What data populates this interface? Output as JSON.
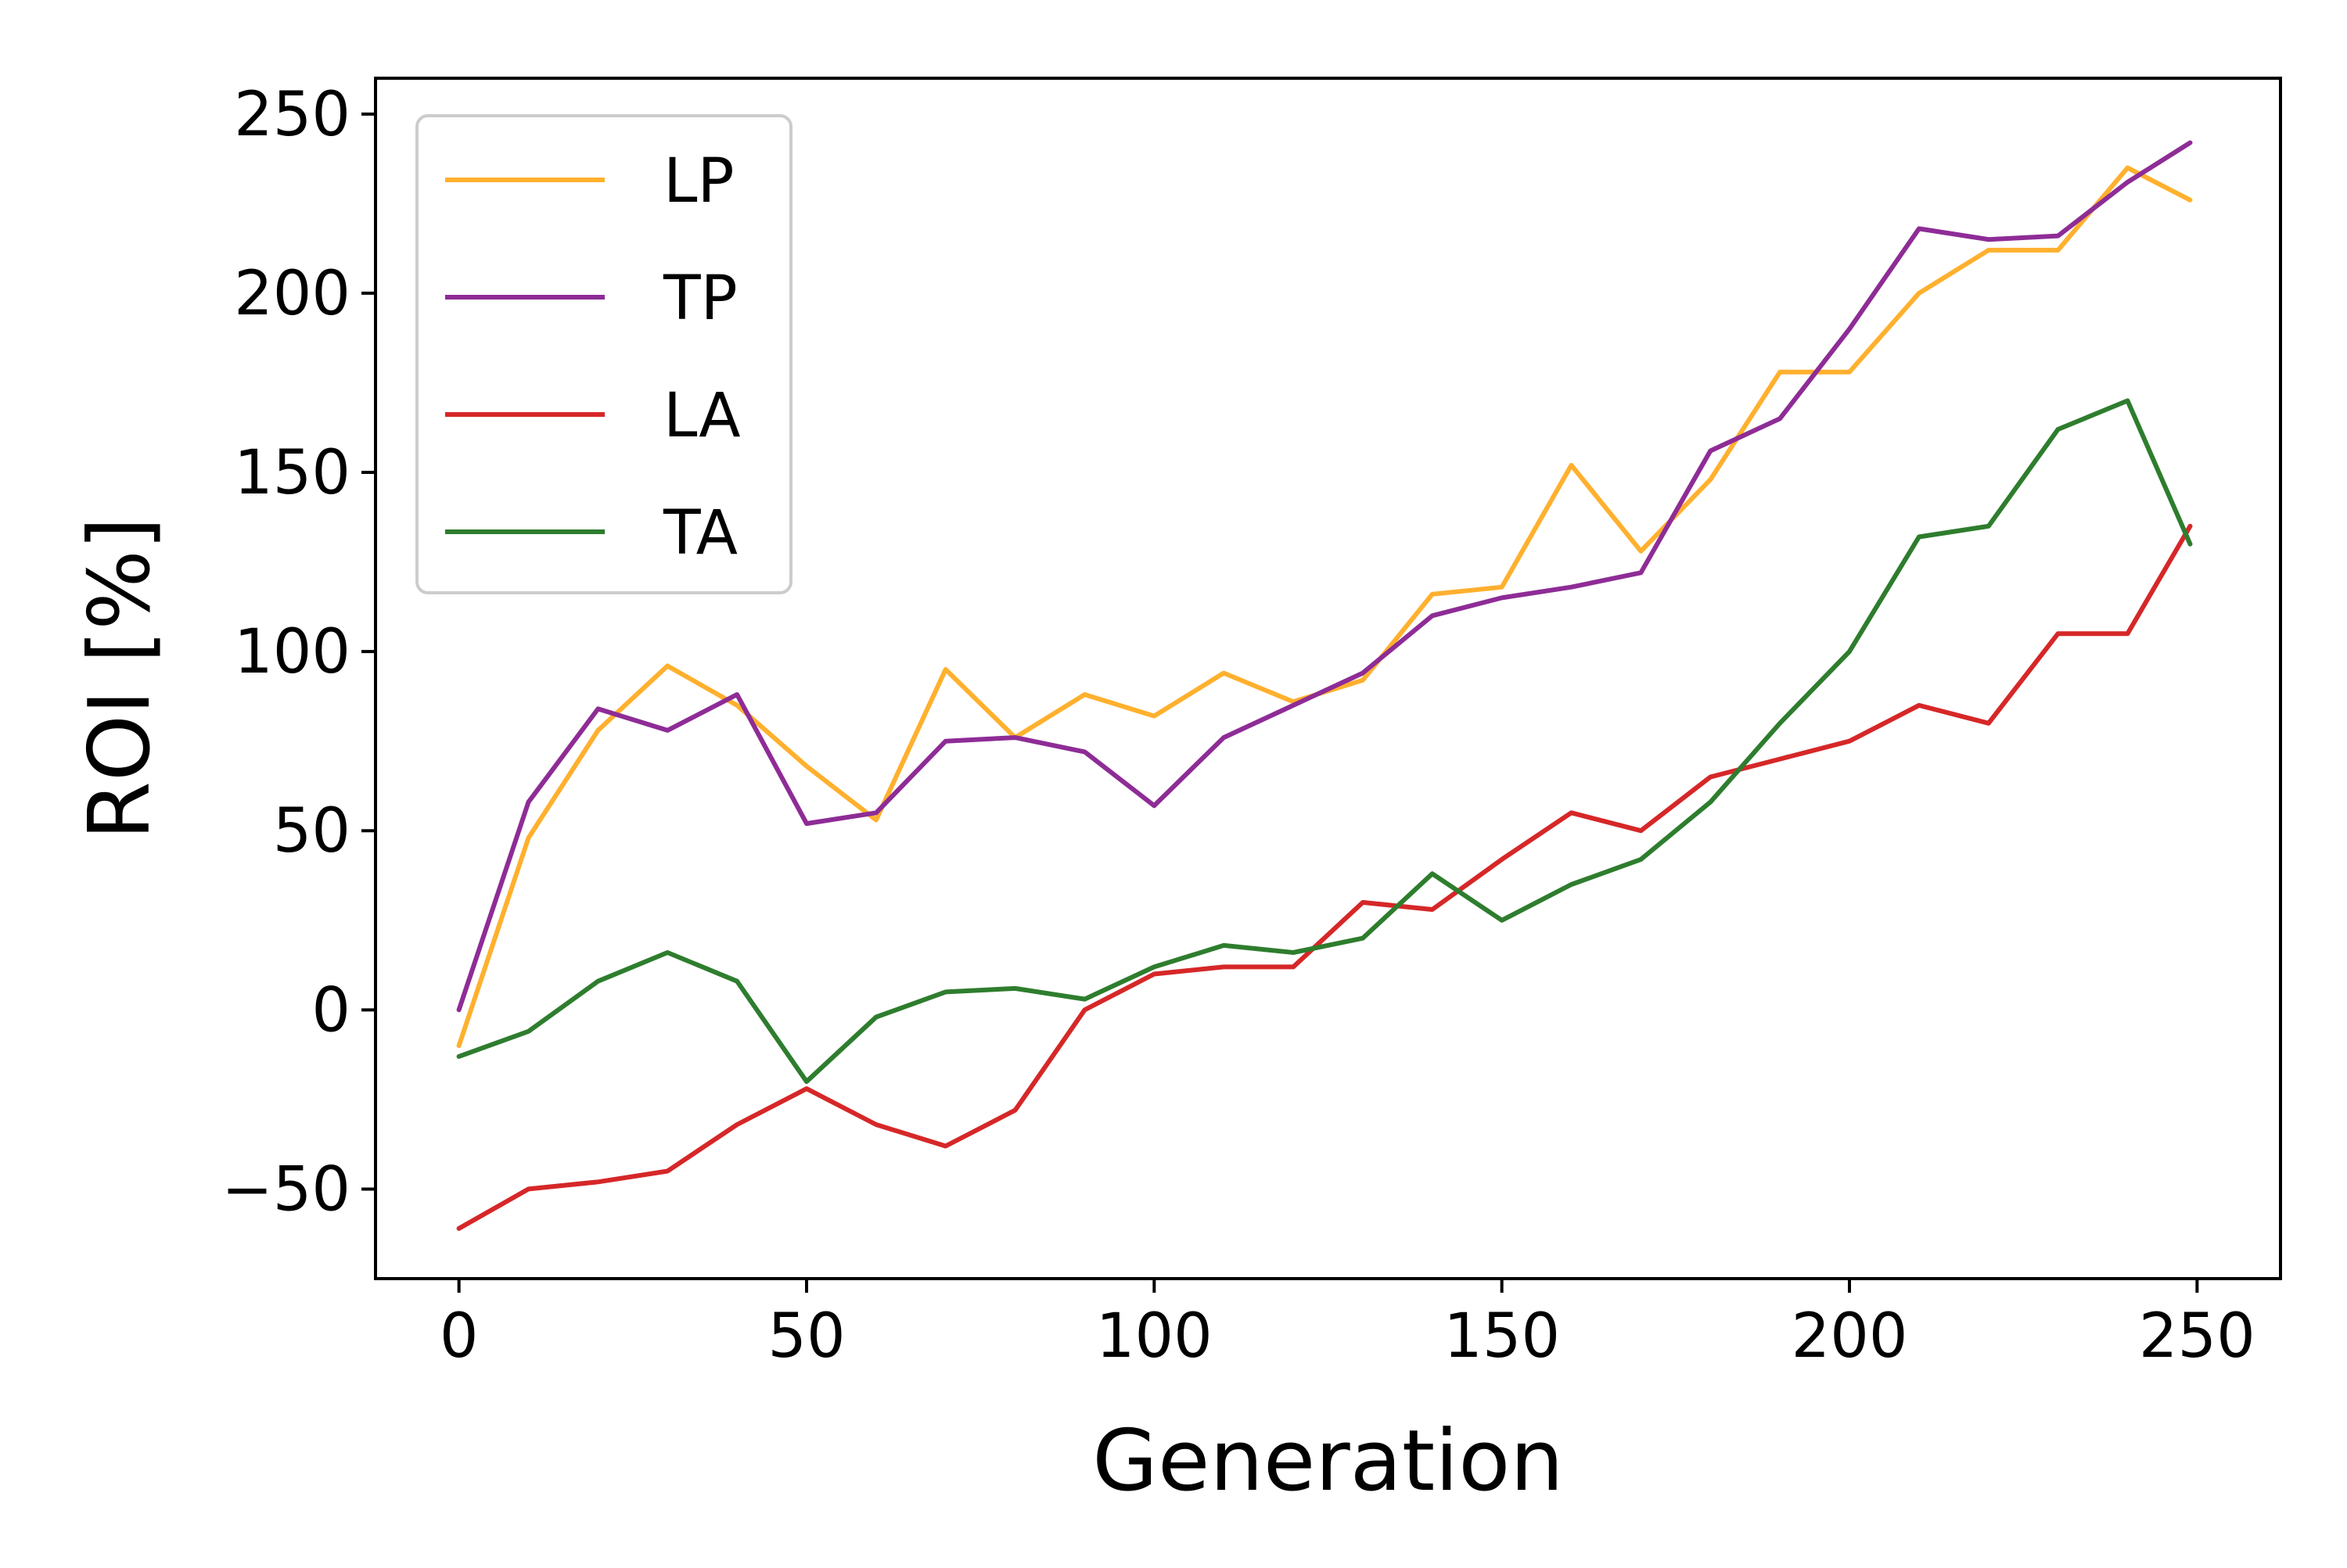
{
  "chart_data": {
    "type": "line",
    "xlabel": "Generation",
    "ylabel": "ROI [%]",
    "xlim": [
      -12,
      262
    ],
    "ylim": [
      -75,
      260
    ],
    "x_ticks": [
      0,
      50,
      100,
      150,
      200,
      250
    ],
    "y_ticks": [
      -50,
      0,
      50,
      100,
      150,
      200,
      250
    ],
    "x_tick_labels": [
      "0",
      "50",
      "100",
      "150",
      "200",
      "250"
    ],
    "y_tick_labels": [
      "−50",
      "0",
      "50",
      "100",
      "150",
      "200",
      "250"
    ],
    "grid": false,
    "legend_position": "upper-left",
    "x": [
      0,
      10,
      20,
      30,
      40,
      50,
      60,
      70,
      80,
      90,
      100,
      110,
      120,
      130,
      140,
      150,
      160,
      170,
      180,
      190,
      200,
      210,
      220,
      230,
      240,
      249
    ],
    "series": [
      {
        "name": "LP",
        "color": "#FFB02E",
        "values": [
          -10,
          48,
          78,
          96,
          85,
          68,
          53,
          95,
          76,
          88,
          82,
          94,
          86,
          92,
          116,
          118,
          152,
          128,
          148,
          178,
          178,
          200,
          212,
          212,
          235,
          226
        ]
      },
      {
        "name": "TP",
        "color": "#8E2C96",
        "values": [
          0,
          58,
          84,
          78,
          88,
          52,
          55,
          75,
          76,
          72,
          57,
          76,
          85,
          94,
          110,
          115,
          118,
          122,
          156,
          165,
          190,
          218,
          215,
          216,
          231,
          242
        ]
      },
      {
        "name": "LA",
        "color": "#D62728",
        "values": [
          -61,
          -50,
          -48,
          -45,
          -32,
          -22,
          -32,
          -38,
          -28,
          0,
          10,
          12,
          12,
          30,
          28,
          42,
          55,
          50,
          65,
          70,
          75,
          85,
          80,
          105,
          105,
          135
        ]
      },
      {
        "name": "TA",
        "color": "#2E7D2E",
        "values": [
          -13,
          -6,
          8,
          16,
          8,
          -20,
          -2,
          5,
          6,
          3,
          12,
          18,
          16,
          20,
          38,
          25,
          35,
          42,
          58,
          80,
          100,
          132,
          135,
          162,
          170,
          130
        ]
      }
    ]
  }
}
